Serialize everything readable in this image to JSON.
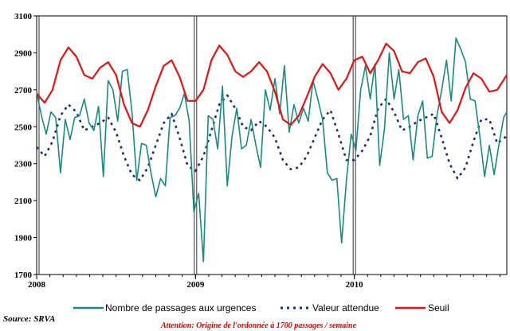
{
  "colors": {
    "passages": "#1a8a80",
    "attendue": "#1f2f6b",
    "seuil": "#e31414",
    "axis": "#000000"
  },
  "chart_data": {
    "type": "line",
    "ylim": [
      1700,
      3100
    ],
    "yticks": [
      1700,
      1900,
      2100,
      2300,
      2500,
      2700,
      2900,
      3100
    ],
    "x_range": [
      2008.0,
      2010.96
    ],
    "year_markers": [
      2008,
      2009,
      2010
    ],
    "grid": false,
    "legend_position": "bottom",
    "legend": [
      {
        "key": "passages",
        "label": "Nombre de passages aux urgences"
      },
      {
        "key": "attendue",
        "label": "Valeur attendue"
      },
      {
        "key": "seuil",
        "label": "Seuil"
      }
    ],
    "source": "Source: SRVA",
    "attention": "Attention: Origine de l'ordonnée à 1700 passages / semaine",
    "series": [
      {
        "key": "passages",
        "name": "Nombre de passages aux urgences",
        "style": "solid",
        "x": [
          2008.0,
          2008.03,
          2008.06,
          2008.09,
          2008.12,
          2008.15,
          2008.18,
          2008.21,
          2008.24,
          2008.27,
          2008.3,
          2008.33,
          2008.36,
          2008.39,
          2008.42,
          2008.45,
          2008.48,
          2008.51,
          2008.54,
          2008.57,
          2008.6,
          2008.63,
          2008.66,
          2008.69,
          2008.72,
          2008.75,
          2008.78,
          2008.81,
          2008.84,
          2008.87,
          2008.9,
          2008.93,
          2008.96,
          2008.99,
          2009.02,
          2009.05,
          2009.08,
          2009.11,
          2009.14,
          2009.17,
          2009.2,
          2009.23,
          2009.26,
          2009.29,
          2009.32,
          2009.35,
          2009.38,
          2009.41,
          2009.44,
          2009.47,
          2009.5,
          2009.53,
          2009.56,
          2009.59,
          2009.62,
          2009.65,
          2009.68,
          2009.71,
          2009.74,
          2009.77,
          2009.8,
          2009.83,
          2009.86,
          2009.89,
          2009.92,
          2009.95,
          2009.98,
          2010.01,
          2010.04,
          2010.07,
          2010.1,
          2010.13,
          2010.16,
          2010.19,
          2010.22,
          2010.25,
          2010.28,
          2010.31,
          2010.34,
          2010.37,
          2010.4,
          2010.43,
          2010.46,
          2010.49,
          2010.52,
          2010.55,
          2010.58,
          2010.61,
          2010.64,
          2010.67,
          2010.7,
          2010.73,
          2010.76,
          2010.79,
          2010.82,
          2010.85,
          2010.88,
          2010.91,
          2010.94,
          2010.96
        ],
        "y": [
          2690,
          2560,
          2460,
          2580,
          2550,
          2250,
          2540,
          2430,
          2550,
          2560,
          2650,
          2520,
          2480,
          2610,
          2230,
          2750,
          2700,
          2530,
          2800,
          2810,
          2580,
          2210,
          2410,
          2400,
          2250,
          2120,
          2220,
          2180,
          2550,
          2560,
          2600,
          2680,
          2530,
          2040,
          2140,
          1770,
          2560,
          2540,
          2380,
          2720,
          2180,
          2450,
          2600,
          2380,
          2400,
          2540,
          2400,
          2280,
          2700,
          2590,
          2760,
          2570,
          2830,
          2470,
          2620,
          2520,
          2600,
          2530,
          2750,
          2650,
          2540,
          2250,
          2210,
          2220,
          1870,
          2210,
          2460,
          2370,
          2700,
          2830,
          2650,
          2840,
          2290,
          2490,
          2900,
          2650,
          2810,
          2540,
          2560,
          2320,
          2560,
          2640,
          2330,
          2340,
          2560,
          2700,
          2860,
          2640,
          2980,
          2920,
          2850,
          2650,
          2640,
          2450,
          2230,
          2400,
          2240,
          2400,
          2550,
          2580
        ]
      },
      {
        "key": "attendue",
        "name": "Valeur attendue",
        "style": "dotted",
        "x": [
          2008.0,
          2008.05,
          2008.1,
          2008.15,
          2008.2,
          2008.25,
          2008.3,
          2008.35,
          2008.4,
          2008.45,
          2008.5,
          2008.55,
          2008.6,
          2008.65,
          2008.7,
          2008.75,
          2008.8,
          2008.85,
          2008.9,
          2008.95,
          2009.0,
          2009.05,
          2009.1,
          2009.15,
          2009.2,
          2009.25,
          2009.3,
          2009.35,
          2009.4,
          2009.45,
          2009.5,
          2009.55,
          2009.6,
          2009.65,
          2009.7,
          2009.75,
          2009.8,
          2009.85,
          2009.9,
          2009.95,
          2010.0,
          2010.05,
          2010.1,
          2010.15,
          2010.2,
          2010.25,
          2010.3,
          2010.35,
          2010.4,
          2010.45,
          2010.5,
          2010.55,
          2010.6,
          2010.65,
          2010.7,
          2010.75,
          2010.8,
          2010.85,
          2010.9,
          2010.96
        ],
        "y": [
          2390,
          2340,
          2420,
          2560,
          2620,
          2580,
          2480,
          2500,
          2520,
          2550,
          2470,
          2340,
          2240,
          2210,
          2280,
          2400,
          2520,
          2570,
          2440,
          2290,
          2260,
          2340,
          2480,
          2620,
          2670,
          2600,
          2500,
          2480,
          2530,
          2500,
          2440,
          2320,
          2270,
          2280,
          2340,
          2440,
          2540,
          2590,
          2460,
          2320,
          2320,
          2370,
          2450,
          2600,
          2650,
          2580,
          2480,
          2500,
          2530,
          2550,
          2570,
          2440,
          2300,
          2220,
          2280,
          2420,
          2540,
          2540,
          2410,
          2450
        ]
      },
      {
        "key": "seuil",
        "name": "Seuil",
        "style": "solid",
        "x": [
          2008.0,
          2008.05,
          2008.1,
          2008.15,
          2008.2,
          2008.25,
          2008.3,
          2008.35,
          2008.4,
          2008.45,
          2008.5,
          2008.55,
          2008.6,
          2008.65,
          2008.7,
          2008.75,
          2008.8,
          2008.85,
          2008.9,
          2008.95,
          2009.0,
          2009.05,
          2009.1,
          2009.15,
          2009.2,
          2009.25,
          2009.3,
          2009.35,
          2009.4,
          2009.45,
          2009.5,
          2009.55,
          2009.6,
          2009.65,
          2009.7,
          2009.75,
          2009.8,
          2009.85,
          2009.9,
          2009.95,
          2010.0,
          2010.05,
          2010.1,
          2010.15,
          2010.2,
          2010.25,
          2010.3,
          2010.35,
          2010.4,
          2010.45,
          2010.5,
          2010.55,
          2010.6,
          2010.65,
          2010.7,
          2010.75,
          2010.8,
          2010.85,
          2010.9,
          2010.96
        ],
        "y": [
          2680,
          2630,
          2700,
          2860,
          2930,
          2880,
          2780,
          2760,
          2820,
          2850,
          2780,
          2620,
          2520,
          2500,
          2590,
          2720,
          2830,
          2860,
          2770,
          2640,
          2640,
          2700,
          2860,
          2940,
          2890,
          2800,
          2770,
          2800,
          2850,
          2800,
          2690,
          2540,
          2510,
          2560,
          2660,
          2770,
          2840,
          2790,
          2700,
          2760,
          2860,
          2880,
          2790,
          2860,
          2950,
          2910,
          2800,
          2790,
          2850,
          2870,
          2770,
          2580,
          2520,
          2590,
          2710,
          2790,
          2760,
          2690,
          2700,
          2780
        ]
      }
    ]
  }
}
